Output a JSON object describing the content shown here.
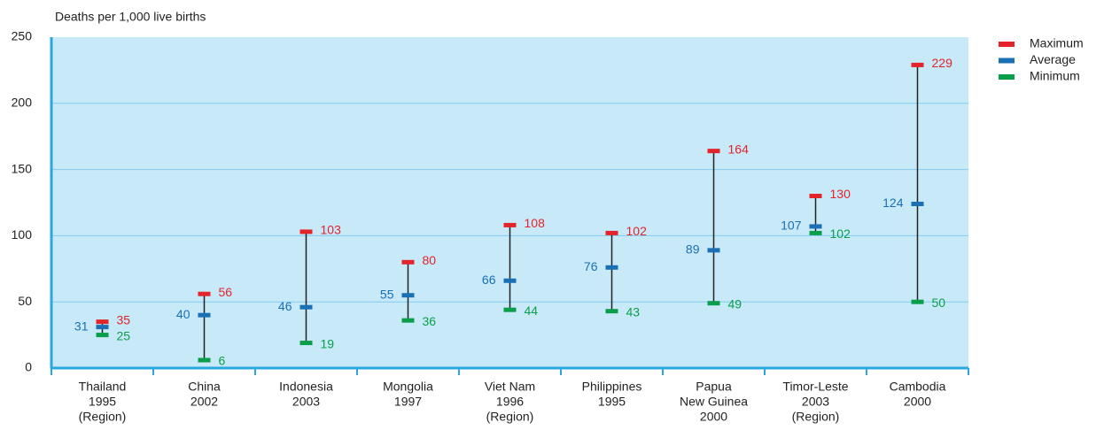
{
  "chart_data": {
    "type": "range",
    "y_axis_label": "Deaths per 1,000 live births",
    "categories": [
      [
        "Thailand",
        "1995",
        "(Region)"
      ],
      [
        "China",
        "2002"
      ],
      [
        "Indonesia",
        "2003"
      ],
      [
        "Mongolia",
        "1997"
      ],
      [
        "Viet Nam",
        "1996",
        "(Region)"
      ],
      [
        "Philippines",
        "1995"
      ],
      [
        "Papua",
        "New Guinea",
        "2000"
      ],
      [
        "Timor-Leste",
        "2003",
        "(Region)"
      ],
      [
        "Cambodia",
        "2000"
      ]
    ],
    "series": [
      {
        "name": "Maximum",
        "color": "#e3242b",
        "values": [
          35,
          56,
          103,
          80,
          108,
          102,
          164,
          130,
          229
        ]
      },
      {
        "name": "Average",
        "color": "#1a6fb5",
        "values": [
          31,
          40,
          46,
          55,
          66,
          76,
          89,
          107,
          124
        ]
      },
      {
        "name": "Minimum",
        "color": "#0a9e4a",
        "values": [
          25,
          6,
          19,
          36,
          44,
          43,
          49,
          102,
          50
        ]
      }
    ],
    "ylim": [
      0,
      250
    ],
    "yticks": [
      0,
      50,
      100,
      150,
      200,
      250
    ],
    "grid": true,
    "legend": "top-right"
  }
}
